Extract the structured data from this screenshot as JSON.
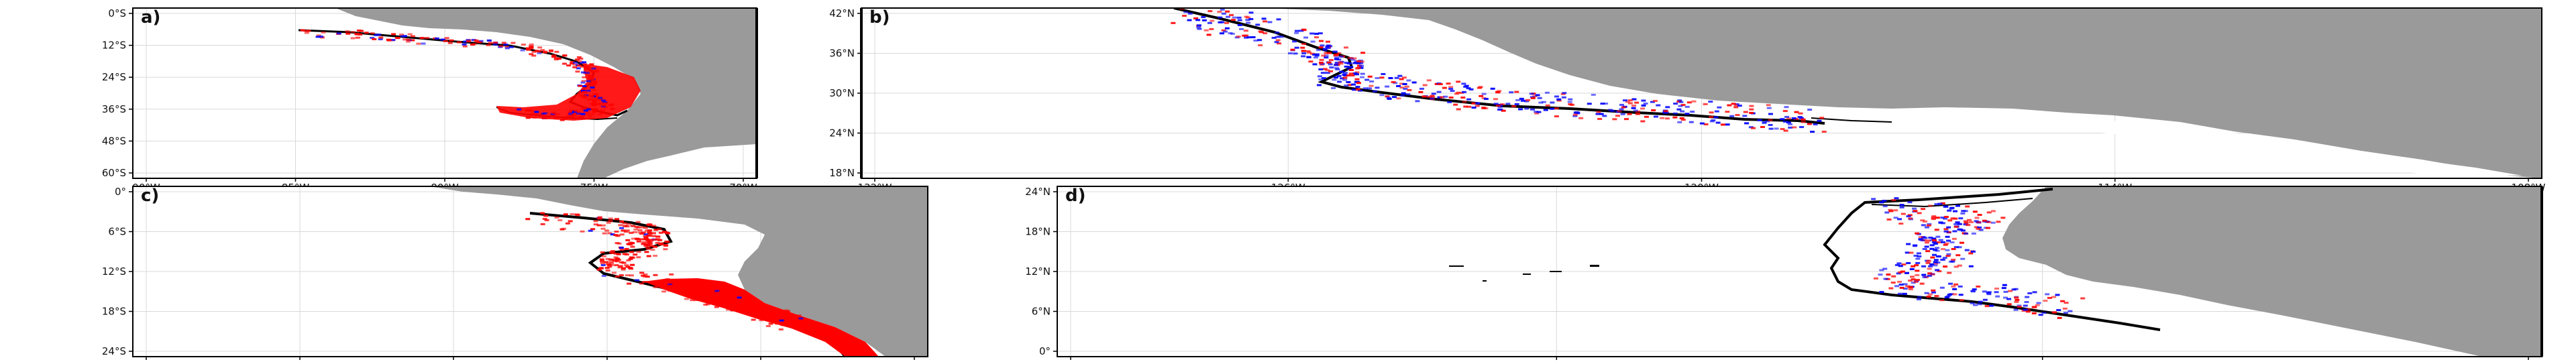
{
  "colors": {
    "land": "#9a9a9a",
    "sea": "#ffffff",
    "grid": "#d9d9d9",
    "frame": "#000000",
    "positive_marker": "#ff0000",
    "negative_marker": "#0000ff",
    "contour": "#000000"
  },
  "panels": [
    {
      "id": "a",
      "label": "a)",
      "lat_ticks": [
        "0°S",
        "12°S",
        "24°S",
        "36°S",
        "48°S",
        "60°S"
      ],
      "lon_ticks": [
        "90°W",
        "85°W",
        "80°W",
        "75°W",
        "70°W"
      ],
      "dominant_markers": "red"
    },
    {
      "id": "b",
      "label": "b)",
      "lat_ticks": [
        "42°N",
        "36°N",
        "30°N",
        "24°N",
        "18°N"
      ],
      "lon_ticks": [
        "132°W",
        "126°W",
        "120°W",
        "114°W",
        "108°W"
      ],
      "dominant_markers": "mixed"
    },
    {
      "id": "c",
      "label": "c)",
      "lat_ticks": [
        "0°",
        "6°S",
        "12°S",
        "18°S",
        "24°S"
      ],
      "lon_ticks": [
        "84°W",
        "81°W",
        "78°W",
        "75°W",
        "72°W",
        "69°W"
      ],
      "dominant_markers": "red"
    },
    {
      "id": "d",
      "label": "d)",
      "lat_ticks": [
        "24°N",
        "18°N",
        "12°N",
        "6°N",
        "0°"
      ],
      "lon_ticks": [
        "30°W",
        "24°W",
        "18°W",
        "12°W"
      ],
      "dominant_markers": "mixed"
    }
  ]
}
